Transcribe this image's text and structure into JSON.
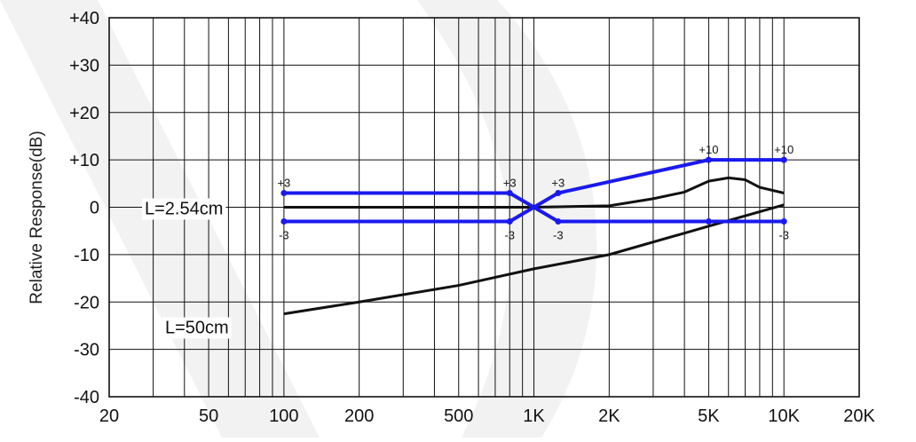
{
  "chart_data": {
    "type": "line",
    "xscale": "log",
    "xlim": [
      20,
      20000
    ],
    "ylim": [
      -40,
      40
    ],
    "xlabel": "",
    "ylabel": "Relative Response(dB)",
    "x_tick_labels": [
      {
        "value": 20,
        "label": "20"
      },
      {
        "value": 50,
        "label": "50"
      },
      {
        "value": 100,
        "label": "100"
      },
      {
        "value": 200,
        "label": "200"
      },
      {
        "value": 500,
        "label": "500"
      },
      {
        "value": 1000,
        "label": "1K"
      },
      {
        "value": 2000,
        "label": "2K"
      },
      {
        "value": 5000,
        "label": "5K"
      },
      {
        "value": 10000,
        "label": "10K"
      },
      {
        "value": 20000,
        "label": "20K"
      }
    ],
    "y_tick_labels": [
      {
        "value": 40,
        "label": "+40"
      },
      {
        "value": 30,
        "label": "+30"
      },
      {
        "value": 20,
        "label": "+20"
      },
      {
        "value": 10,
        "label": "+10"
      },
      {
        "value": 0,
        "label": "0"
      },
      {
        "value": -10,
        "label": "-10"
      },
      {
        "value": -20,
        "label": "-20"
      },
      {
        "value": -30,
        "label": "-30"
      },
      {
        "value": -40,
        "label": "-40"
      }
    ],
    "grid": true,
    "series": [
      {
        "name": "L=2.54cm",
        "color": "#111111",
        "x": [
          100,
          200,
          500,
          1000,
          2000,
          3000,
          4000,
          5000,
          6000,
          7000,
          8000,
          10000
        ],
        "y": [
          0,
          0,
          0,
          0,
          0.3,
          1.8,
          3.2,
          5.5,
          6.2,
          5.8,
          4.2,
          3.0
        ]
      },
      {
        "name": "L=50cm",
        "color": "#111111",
        "x": [
          100,
          200,
          500,
          1000,
          2000,
          5000,
          10000
        ],
        "y": [
          -22.5,
          -20,
          -16.5,
          -13,
          -10,
          -4,
          0.5
        ]
      }
    ],
    "tolerance_limits": {
      "color": "#1a1aee",
      "upper": {
        "x": [
          100,
          800,
          1000,
          1250,
          5000,
          10000
        ],
        "y": [
          3,
          3,
          0,
          3,
          10,
          10
        ]
      },
      "lower": {
        "x": [
          100,
          800,
          1000,
          1250,
          5000,
          10000
        ],
        "y": [
          -3,
          -3,
          0,
          -3,
          -3,
          -3
        ]
      },
      "point_labels": [
        {
          "x": 100,
          "y": 3,
          "text": "+3",
          "pos": "above"
        },
        {
          "x": 100,
          "y": -3,
          "text": "-3",
          "pos": "below"
        },
        {
          "x": 800,
          "y": 3,
          "text": "+3",
          "pos": "above"
        },
        {
          "x": 800,
          "y": -3,
          "text": "-3",
          "pos": "below"
        },
        {
          "x": 1250,
          "y": 3,
          "text": "+3",
          "pos": "above"
        },
        {
          "x": 1250,
          "y": -3,
          "text": "-3",
          "pos": "below"
        },
        {
          "x": 5000,
          "y": 10,
          "text": "+10",
          "pos": "above"
        },
        {
          "x": 10000,
          "y": 10,
          "text": "+10",
          "pos": "above"
        },
        {
          "x": 10000,
          "y": -3,
          "text": "-3",
          "pos": "below"
        }
      ]
    },
    "annotations": [
      {
        "text": "L=2.54cm",
        "series": "L=2.54cm"
      },
      {
        "text": "L=50cm",
        "series": "L=50cm"
      }
    ]
  }
}
